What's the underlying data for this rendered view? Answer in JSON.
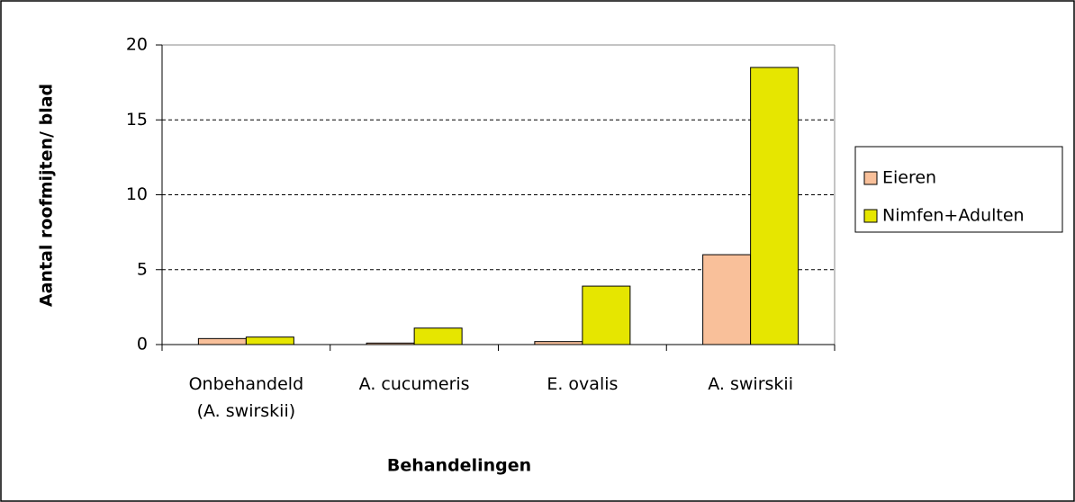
{
  "chart_data": {
    "type": "bar",
    "y_label": "Aantal roofmijten/ blad",
    "x_label": "Behandelingen",
    "categories": [
      "Onbehandeld (A. swirskii)",
      "A. cucumeris",
      "E. ovalis",
      "A. swirskii"
    ],
    "series": [
      {
        "name": "Eieren",
        "color": "#f9c09a",
        "values": [
          0.4,
          0.1,
          0.2,
          6.0
        ]
      },
      {
        "name": "Nimfen+Adulten",
        "color": "#e6e600",
        "values": [
          0.5,
          1.1,
          3.9,
          18.5
        ]
      }
    ],
    "ylim": [
      0,
      20
    ],
    "yticks": [
      0,
      5,
      10,
      15,
      20
    ],
    "grid": true,
    "legend": "right"
  }
}
